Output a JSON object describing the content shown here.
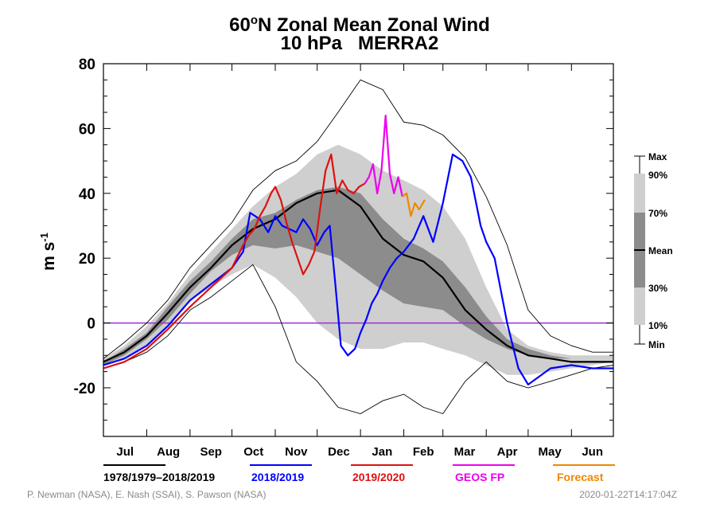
{
  "chart_data": {
    "type": "line",
    "title_line1_pre": "60",
    "title_line1_sup": "o",
    "title_line1_post": "N Zonal Mean Zonal Wind",
    "title_line2": "10 hPa   MERRA2",
    "ylabel_base": "m s",
    "ylabel_sup": "-1",
    "ylim": [
      -35,
      80
    ],
    "yticks": [
      -20,
      0,
      20,
      40,
      60,
      80
    ],
    "xlim": [
      0,
      365
    ],
    "x_unit": "days from 1 July",
    "months": [
      "Jul",
      "Aug",
      "Sep",
      "Oct",
      "Nov",
      "Dec",
      "Jan",
      "Feb",
      "Mar",
      "Apr",
      "May",
      "Jun"
    ],
    "month_starts": [
      0,
      31,
      62,
      92,
      123,
      153,
      184,
      215,
      243,
      274,
      304,
      335,
      365
    ],
    "zero_line_color": "#9933cc",
    "band_colors": {
      "outer": "#cfcfcf",
      "inner": "#8c8c8c"
    },
    "climatology": {
      "x": [
        0,
        15,
        31,
        46,
        62,
        77,
        92,
        107,
        123,
        138,
        153,
        168,
        184,
        200,
        215,
        229,
        243,
        259,
        274,
        289,
        304,
        320,
        335,
        350,
        365
      ],
      "min": [
        -14,
        -12,
        -9,
        -4,
        4,
        8,
        13,
        18,
        5,
        -12,
        -18,
        -26,
        -28,
        -24,
        -22,
        -26,
        -28,
        -18,
        -12,
        -18,
        -20,
        -18,
        -16,
        -14,
        -13
      ],
      "p10": [
        -13,
        -11,
        -7,
        -1,
        7,
        11,
        15,
        18,
        14,
        8,
        0,
        -5,
        -8,
        -8,
        -6,
        -6,
        -8,
        -10,
        -13,
        -16,
        -16,
        -15,
        -14,
        -13,
        -12
      ],
      "p30": [
        -13,
        -10,
        -5,
        1,
        9,
        16,
        21,
        24,
        23,
        24,
        22,
        20,
        15,
        10,
        6,
        5,
        4,
        -1,
        -5,
        -8,
        -10,
        -11,
        -11,
        -11,
        -11
      ],
      "mean": [
        -12,
        -9,
        -4,
        3,
        11,
        17,
        24,
        29,
        32,
        37,
        40,
        41,
        36,
        26,
        21,
        19,
        14,
        4,
        -2,
        -7,
        -10,
        -11,
        -12,
        -12,
        -12
      ],
      "p70": [
        -12,
        -8,
        -3,
        5,
        13,
        19,
        26,
        32,
        34,
        38,
        41,
        42,
        40,
        32,
        26,
        23,
        19,
        11,
        2,
        -5,
        -8,
        -10,
        -11,
        -11,
        -11
      ],
      "p90": [
        -11,
        -7,
        -1,
        6,
        15,
        22,
        29,
        36,
        42,
        46,
        52,
        55,
        52,
        47,
        44,
        41,
        36,
        26,
        11,
        -2,
        -7,
        -9,
        -10,
        -10,
        -10
      ],
      "max": [
        -11,
        -6,
        0,
        7,
        17,
        24,
        31,
        41,
        47,
        50,
        56,
        65,
        75,
        72,
        62,
        61,
        58,
        51,
        39,
        24,
        4,
        -4,
        -7,
        -9,
        -9
      ]
    },
    "series": [
      {
        "name": "1978/1979–2018/2019",
        "color": "#000000",
        "ref": "mean"
      },
      {
        "name": "2018/2019",
        "color": "#0000ff",
        "x": [
          0,
          15,
          31,
          46,
          62,
          77,
          92,
          100,
          105,
          112,
          118,
          123,
          128,
          133,
          138,
          143,
          148,
          153,
          158,
          162,
          166,
          170,
          175,
          180,
          184,
          188,
          192,
          196,
          200,
          205,
          210,
          215,
          222,
          229,
          236,
          243,
          250,
          257,
          263,
          270,
          274,
          280,
          289,
          297,
          304,
          320,
          335,
          350,
          365
        ],
        "y": [
          -13,
          -11,
          -7,
          -1,
          7,
          12,
          17,
          22,
          34,
          32,
          28,
          33,
          30,
          29,
          28,
          32,
          29,
          24,
          28,
          30,
          12,
          -7,
          -10,
          -8,
          -3,
          1,
          6,
          9,
          13,
          17,
          20,
          22,
          26,
          33,
          25,
          37,
          52,
          50,
          45,
          30,
          25,
          20,
          0,
          -14,
          -19,
          -14,
          -13,
          -14,
          -14
        ]
      },
      {
        "name": "2019/2020",
        "color": "#dd1111",
        "x": [
          0,
          15,
          31,
          46,
          62,
          77,
          92,
          100,
          104,
          108,
          112,
          116,
          120,
          123,
          127,
          131,
          135,
          139,
          143,
          147,
          151,
          155,
          159,
          163,
          167,
          171,
          175,
          179,
          183,
          187
        ],
        "y": [
          -14,
          -12,
          -8,
          -2,
          5,
          11,
          17,
          24,
          27,
          29,
          33,
          36,
          40,
          42,
          38,
          31,
          25,
          20,
          15,
          18,
          22,
          35,
          47,
          52,
          40,
          44,
          41,
          40,
          42,
          43
        ]
      },
      {
        "name": "GEOS FP",
        "color": "#ee00ee",
        "x": [
          187,
          190,
          193,
          196,
          199,
          202,
          205,
          208,
          211,
          214
        ],
        "y": [
          43,
          45,
          49,
          40,
          47,
          64,
          46,
          40,
          45,
          39
        ]
      },
      {
        "name": "Forecast",
        "color": "#ee8800",
        "x": [
          214,
          217,
          220,
          223,
          226,
          230
        ],
        "y": [
          39,
          40,
          33,
          37,
          35,
          38
        ]
      }
    ],
    "credits_left": "P. Newman (NASA), E. Nash (SSAI), S. Pawson (NASA)",
    "credits_right": "2020-01-22T14:17:04Z",
    "band_legend": {
      "labels_right": [
        "Max",
        "90%",
        "70%",
        "Mean",
        "30%",
        "10%",
        "Min"
      ]
    }
  }
}
